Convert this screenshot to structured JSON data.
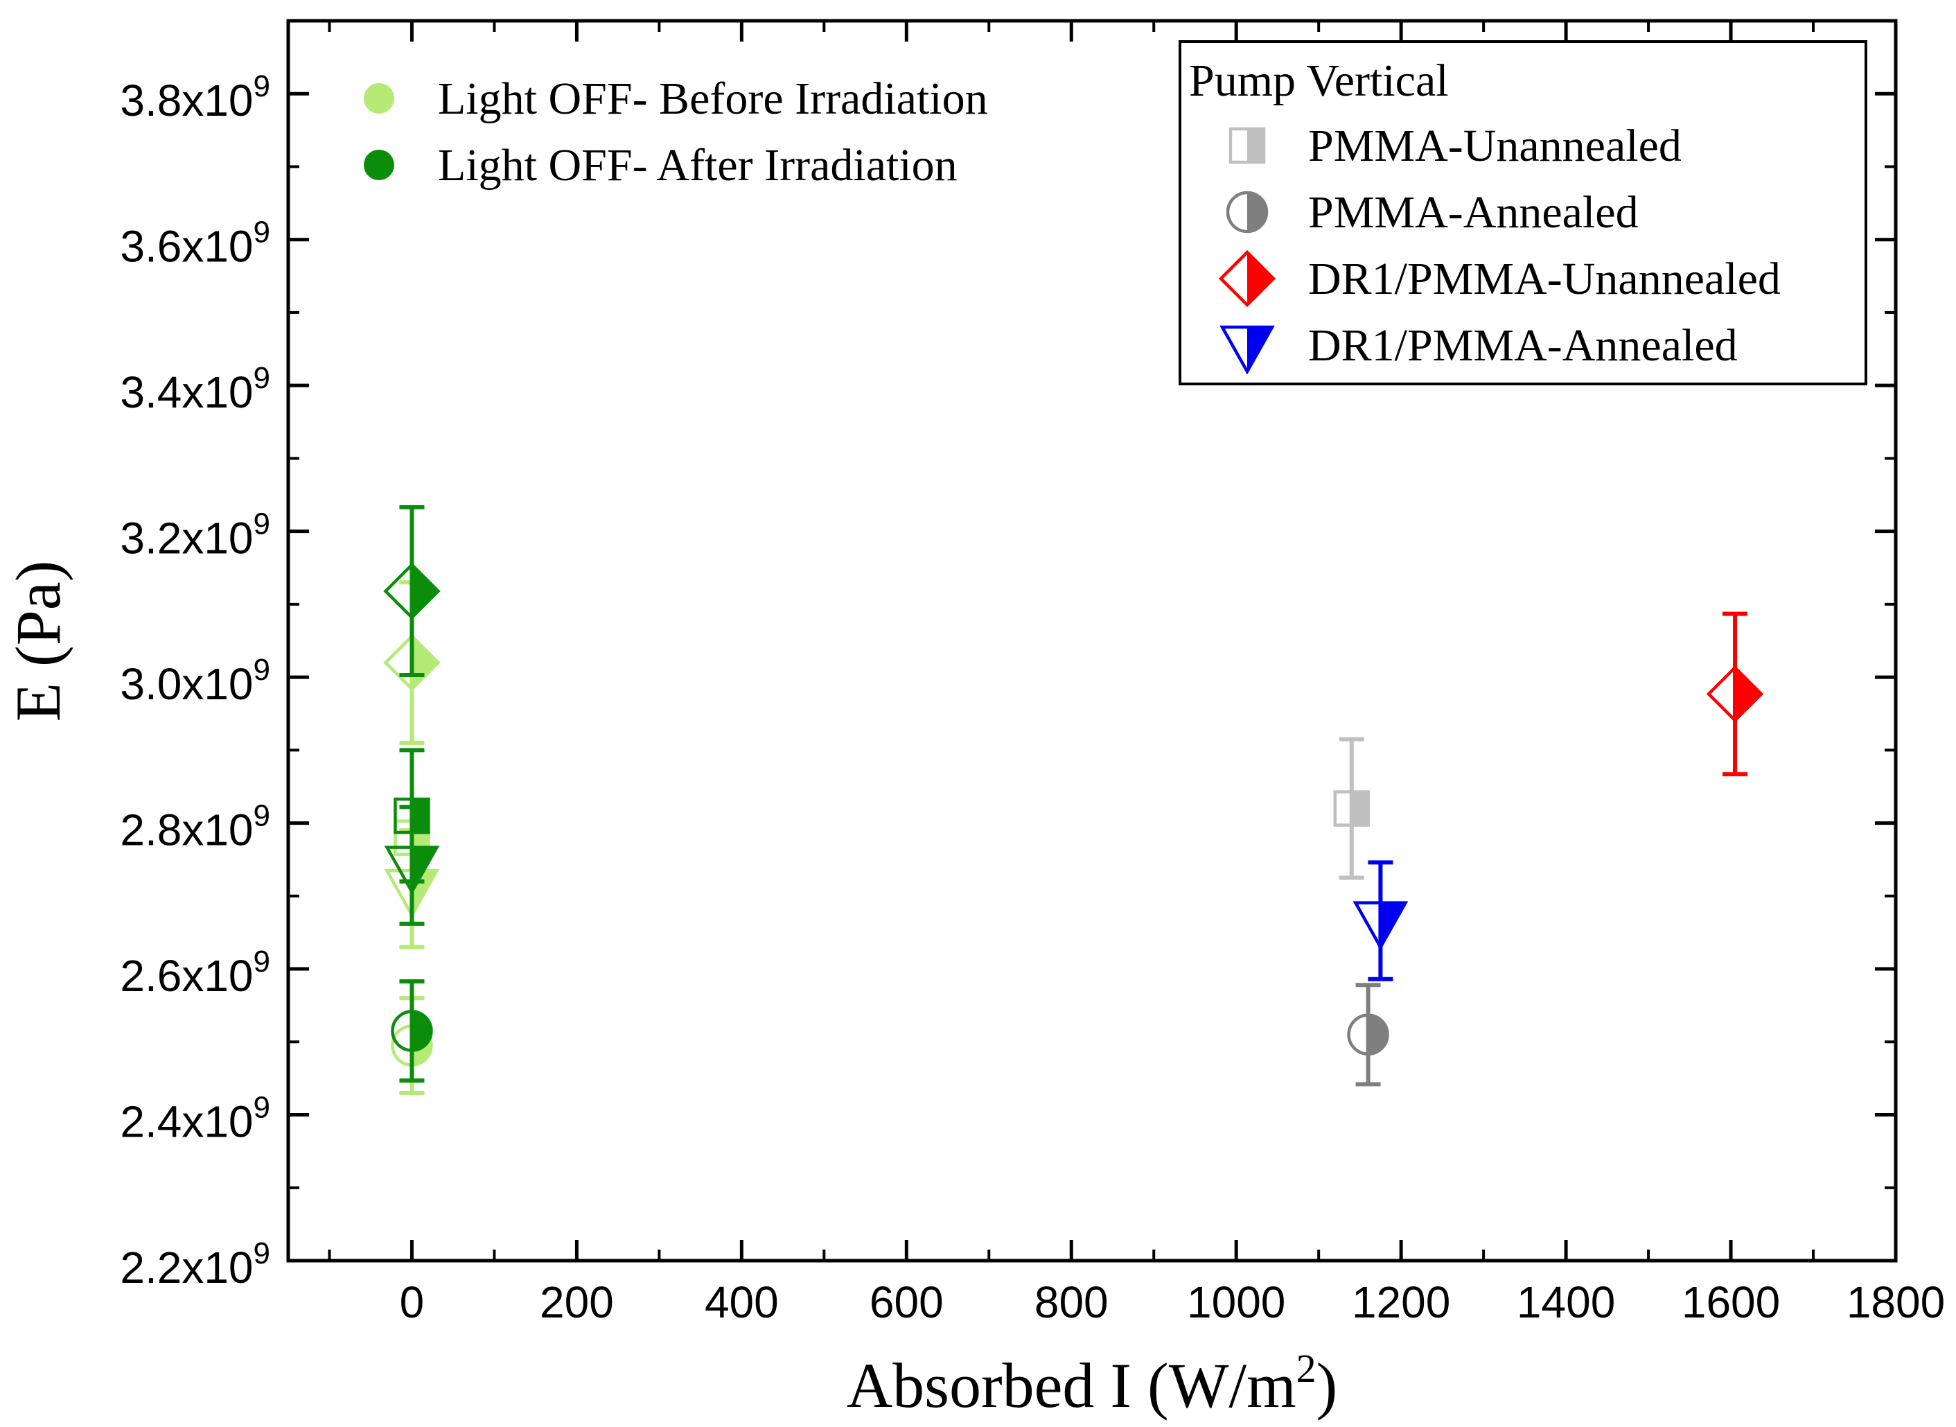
{
  "chart_data": {
    "type": "scatter",
    "xlabel": {
      "base": "Absorbed I (W/m",
      "sup": "2",
      "end": ")"
    },
    "ylabel": "E (Pa)",
    "xlim": [
      -150,
      1800
    ],
    "ylim": [
      2200000000,
      3900000000
    ],
    "x_ticks": [
      {
        "value": 0,
        "label": "0"
      },
      {
        "value": 200,
        "label": "200"
      },
      {
        "value": 400,
        "label": "400"
      },
      {
        "value": 600,
        "label": "600"
      },
      {
        "value": 800,
        "label": "800"
      },
      {
        "value": 1000,
        "label": "1000"
      },
      {
        "value": 1200,
        "label": "1200"
      },
      {
        "value": 1400,
        "label": "1400"
      },
      {
        "value": 1600,
        "label": "1600"
      },
      {
        "value": 1800,
        "label": "1800"
      }
    ],
    "y_ticks": [
      {
        "value": 2200000000,
        "mant": "2.2x10",
        "exp": "9"
      },
      {
        "value": 2400000000,
        "mant": "2.4x10",
        "exp": "9"
      },
      {
        "value": 2600000000,
        "mant": "2.6x10",
        "exp": "9"
      },
      {
        "value": 2800000000,
        "mant": "2.8x10",
        "exp": "9"
      },
      {
        "value": 3000000000,
        "mant": "3.0x10",
        "exp": "9"
      },
      {
        "value": 3200000000,
        "mant": "3.2x10",
        "exp": "9"
      },
      {
        "value": 3400000000,
        "mant": "3.4x10",
        "exp": "9"
      },
      {
        "value": 3600000000,
        "mant": "3.6x10",
        "exp": "9"
      },
      {
        "value": 3800000000,
        "mant": "3.8x10",
        "exp": "9"
      }
    ],
    "legend_left": {
      "position": "top-left",
      "items": [
        {
          "label": "Light OFF- Before Irradiation",
          "color": "#b5ea74"
        },
        {
          "label": "Light OFF- After Irradiation",
          "color": "#0b8d0b"
        }
      ]
    },
    "legend_right": {
      "position": "top-right",
      "title": "Pump Vertical",
      "items": [
        {
          "label": "PMMA-Unannealed",
          "marker": "square",
          "color": "#c0c0c0"
        },
        {
          "label": "PMMA-Annealed",
          "marker": "circle",
          "color": "#7f7f7f"
        },
        {
          "label": "DR1/PMMA-Unannealed",
          "marker": "diamond",
          "color": "#ff0000"
        },
        {
          "label": "DR1/PMMA-Annealed",
          "marker": "triangle",
          "color": "#0000ee"
        }
      ]
    },
    "series": [
      {
        "name": "PMMA-Unannealed (Pump Vertical)",
        "marker": "square",
        "color": "#c0c0c0",
        "x": 1140,
        "y": 2820000000,
        "err": 95000000
      },
      {
        "name": "PMMA-Annealed (Pump Vertical)",
        "marker": "circle",
        "color": "#7f7f7f",
        "x": 1160,
        "y": 2510000000,
        "err": 68000000
      },
      {
        "name": "DR1/PMMA-Unannealed (Pump Vertical)",
        "marker": "diamond",
        "color": "#ff0000",
        "x": 1605,
        "y": 2977000000,
        "err": 110000000
      },
      {
        "name": "DR1/PMMA-Annealed (Pump Vertical)",
        "marker": "triangle",
        "color": "#0000ee",
        "x": 1175,
        "y": 2666000000,
        "err": 80000000
      },
      {
        "name": "PMMA-Unannealed (Light OFF- Before Irradiation)",
        "marker": "square",
        "color": "#b5ea74",
        "x": 0,
        "y": 2780000000,
        "err": 0
      },
      {
        "name": "PMMA-Annealed (Light OFF- Before Irradiation)",
        "marker": "circle",
        "color": "#b5ea74",
        "x": 0,
        "y": 2495000000,
        "err": 65000000
      },
      {
        "name": "DR1/PMMA-Unannealed (Light OFF- Before Irradiation)",
        "marker": "diamond",
        "color": "#b5ea74",
        "x": 0,
        "y": 3020000000,
        "err": 110000000
      },
      {
        "name": "DR1/PMMA-Annealed (Light OFF- Before Irradiation)",
        "marker": "triangle",
        "color": "#b5ea74",
        "x": 0,
        "y": 2710000000,
        "err": 80000000
      },
      {
        "name": "PMMA-Unannealed (Light OFF- After Irradiation)",
        "marker": "square",
        "color": "#0b8d0b",
        "x": 0,
        "y": 2810000000,
        "err": 90000000
      },
      {
        "name": "PMMA-Annealed (Light OFF- After Irradiation)",
        "marker": "circle",
        "color": "#0b8d0b",
        "x": 0,
        "y": 2515000000,
        "err": 68000000
      },
      {
        "name": "DR1/PMMA-Unannealed (Light OFF- After Irradiation)",
        "marker": "diamond",
        "color": "#0b8d0b",
        "x": 0,
        "y": 3118000000,
        "err": 115000000
      },
      {
        "name": "DR1/PMMA-Annealed (Light OFF- After Irradiation)",
        "marker": "triangle",
        "color": "#0b8d0b",
        "x": 0,
        "y": 2742000000,
        "err": 80000000
      }
    ]
  }
}
